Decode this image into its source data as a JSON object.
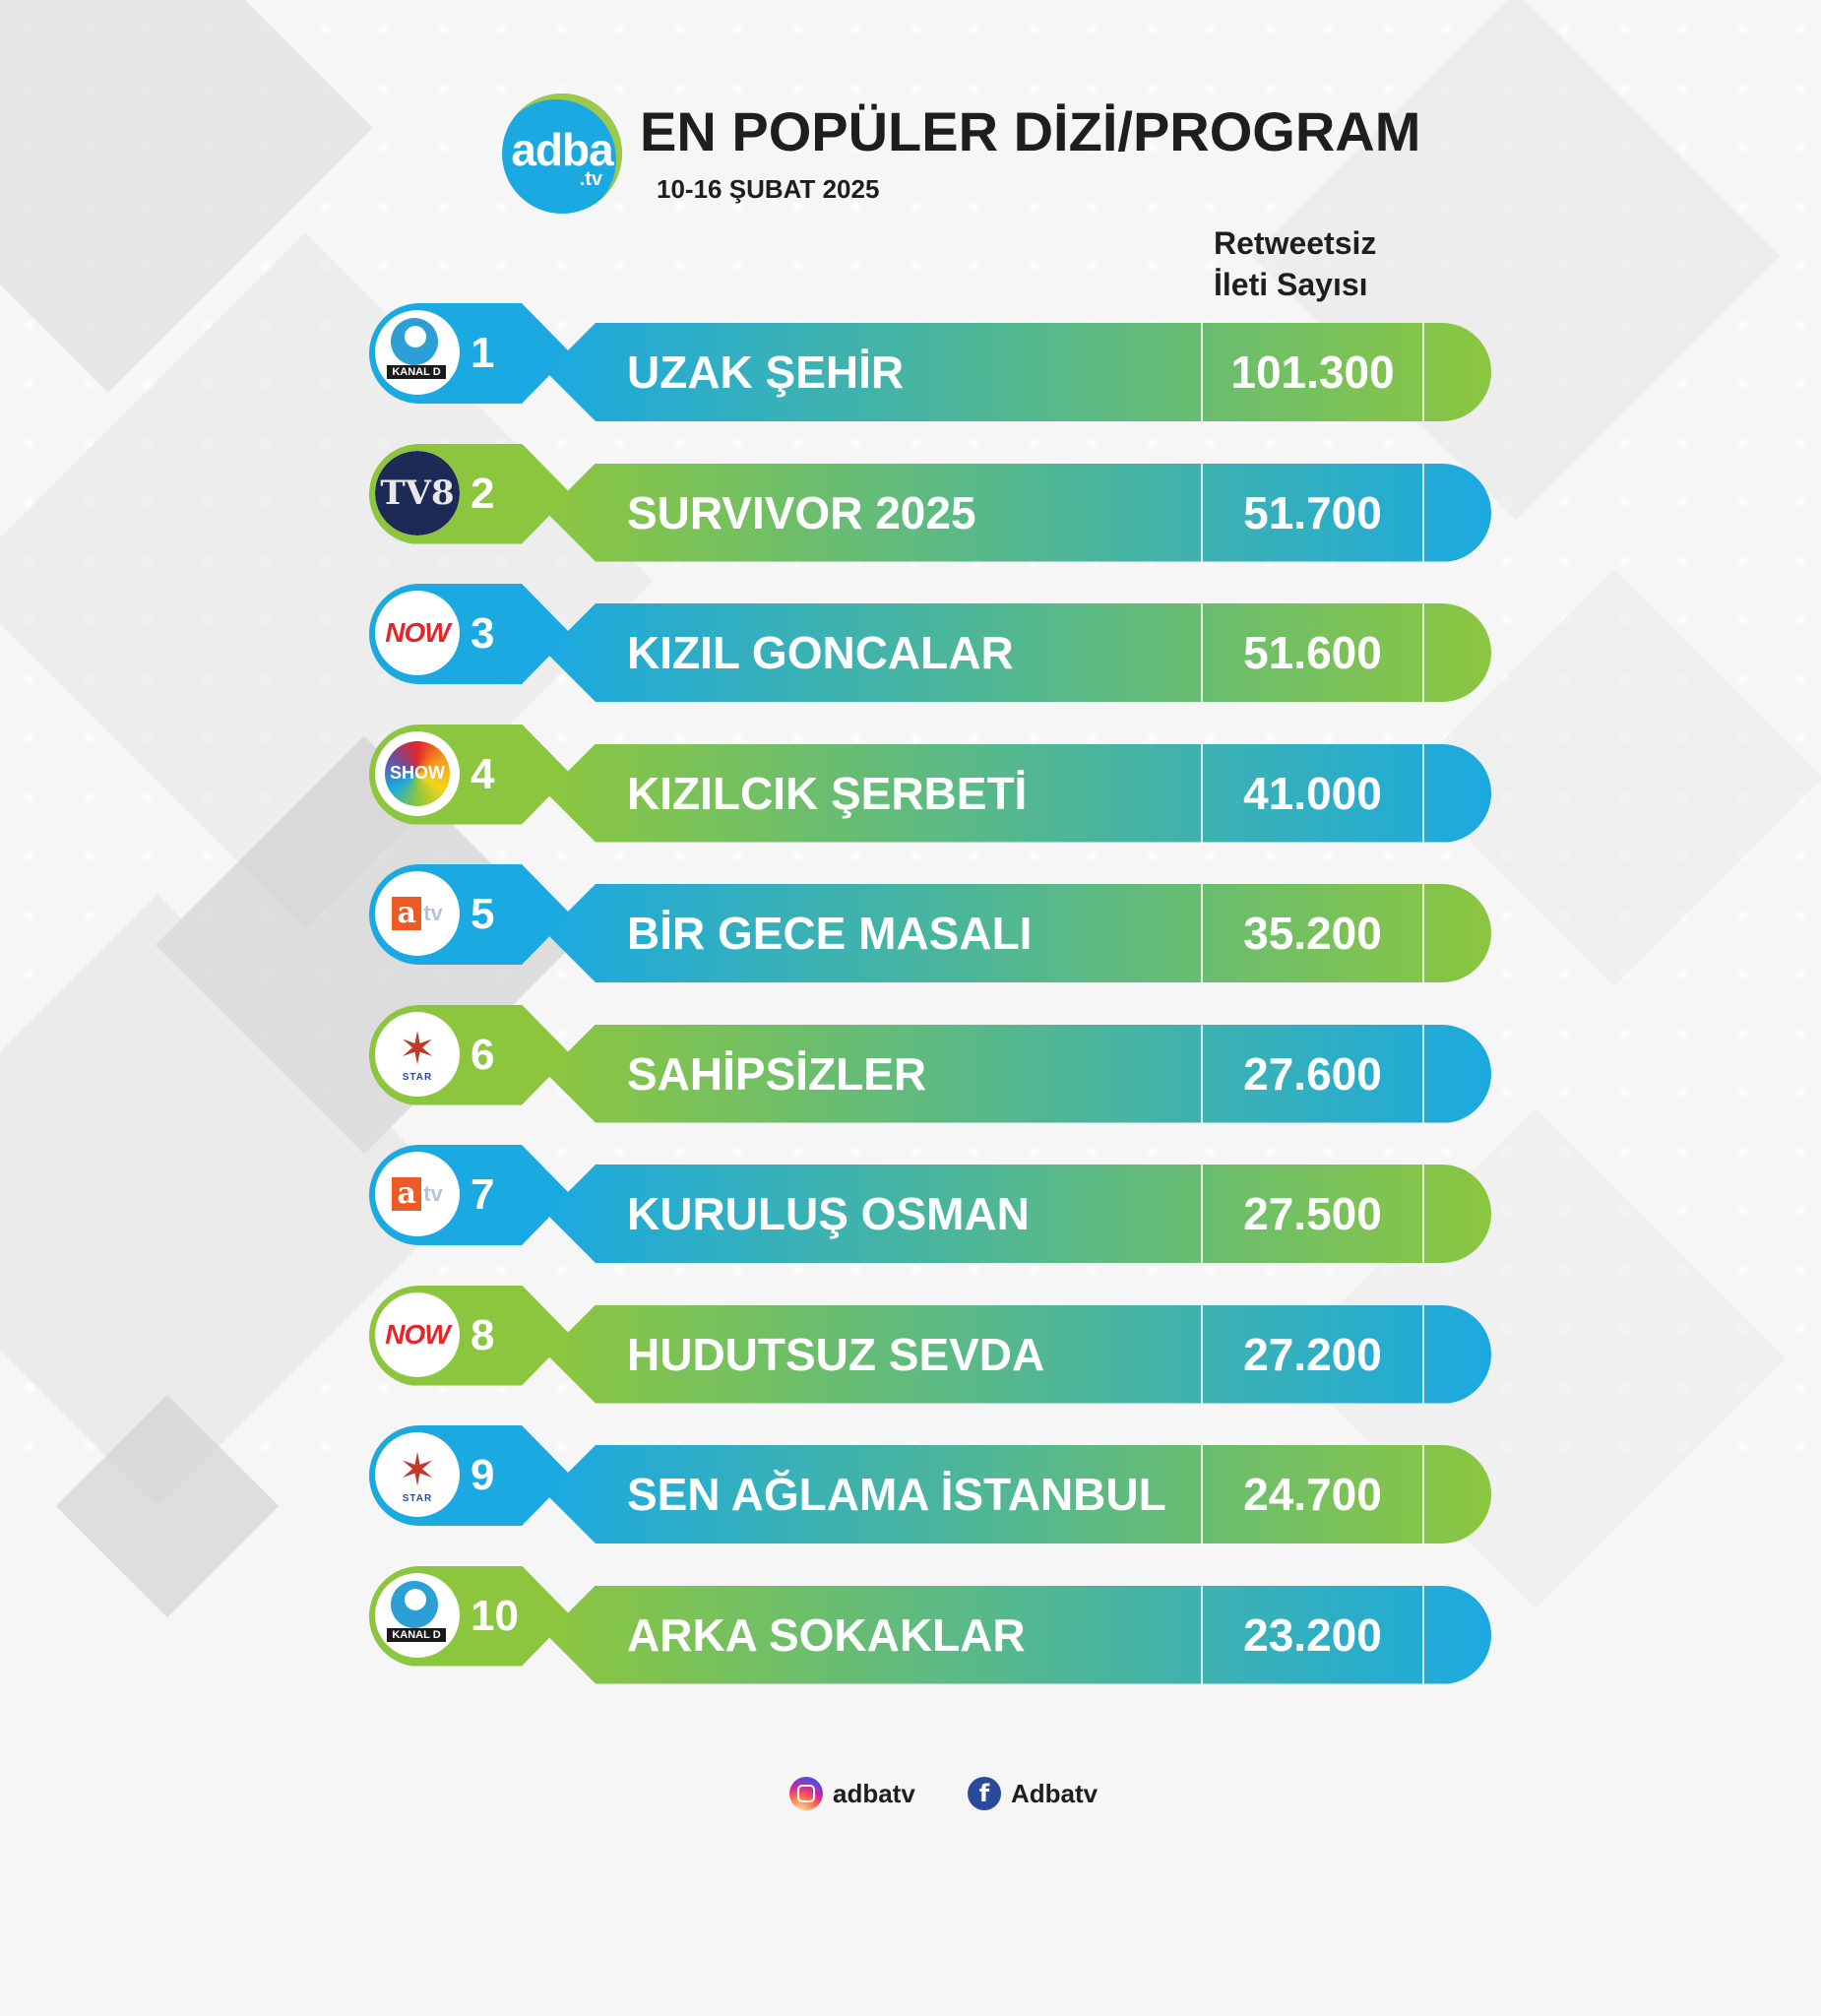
{
  "header": {
    "logo_text": "adba",
    "logo_sub": ".tv",
    "title": "EN POPÜLER DİZİ/PROGRAM",
    "date": "10-16 ŞUBAT 2025"
  },
  "column_header": {
    "line1": "Retweetsiz",
    "line2": "İleti Sayısı"
  },
  "colors": {
    "blue": "#1ba9e1",
    "green": "#8cc63f"
  },
  "rows": [
    {
      "rank": "1",
      "channel": "kanal-d",
      "channel_label": "KANAL D",
      "name": "UZAK ŞEHİR",
      "value": "101.300",
      "tag_color": "blue"
    },
    {
      "rank": "2",
      "channel": "tv8",
      "channel_label": "TV8",
      "name": "SURVIVOR 2025",
      "value": "51.700",
      "tag_color": "green"
    },
    {
      "rank": "3",
      "channel": "now",
      "channel_label": "NOW",
      "name": "KIZIL GONCALAR",
      "value": "51.600",
      "tag_color": "blue"
    },
    {
      "rank": "4",
      "channel": "show",
      "channel_label": "SHOW",
      "name": "KIZILCIK ŞERBETİ",
      "value": "41.000",
      "tag_color": "green"
    },
    {
      "rank": "5",
      "channel": "atv",
      "channel_label": "atv",
      "name": "BİR GECE MASALI",
      "value": "35.200",
      "tag_color": "blue"
    },
    {
      "rank": "6",
      "channel": "star",
      "channel_label": "STAR",
      "name": "SAHİPSİZLER",
      "value": "27.600",
      "tag_color": "green"
    },
    {
      "rank": "7",
      "channel": "atv",
      "channel_label": "atv",
      "name": "KURULUŞ OSMAN",
      "value": "27.500",
      "tag_color": "blue"
    },
    {
      "rank": "8",
      "channel": "now",
      "channel_label": "NOW",
      "name": "HUDUTSUZ SEVDA",
      "value": "27.200",
      "tag_color": "green"
    },
    {
      "rank": "9",
      "channel": "star",
      "channel_label": "STAR",
      "name": "SEN AĞLAMA İSTANBUL",
      "value": "24.700",
      "tag_color": "blue"
    },
    {
      "rank": "10",
      "channel": "kanal-d",
      "channel_label": "KANAL D",
      "name": "ARKA SOKAKLAR",
      "value": "23.200",
      "tag_color": "green"
    }
  ],
  "footer": {
    "instagram": "adbatv",
    "facebook": "Adbatv"
  }
}
